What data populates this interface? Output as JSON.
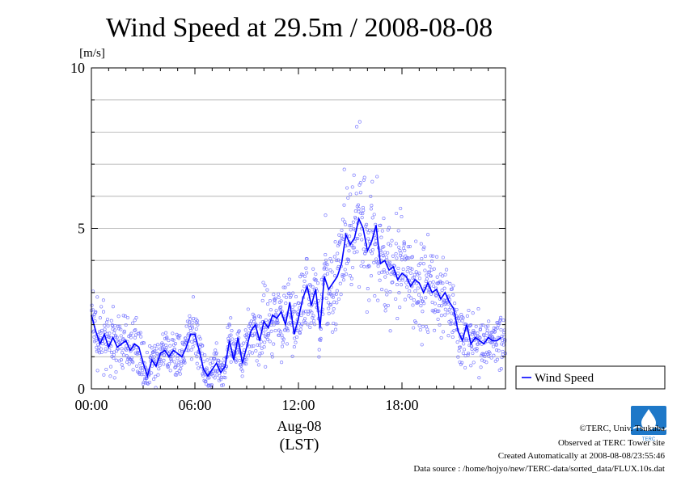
{
  "chart_data": {
    "type": "scatter",
    "title": "Wind Speed at 29.5m / 2008-08-08",
    "ylabel": "[m/s]",
    "xlabel_date": "Aug-08",
    "xlabel_tz": "(LST)",
    "ylim": [
      0,
      10
    ],
    "xlim_hours": [
      0,
      24
    ],
    "yticks": [
      0,
      5,
      10
    ],
    "xticks": [
      {
        "hour": 0,
        "label": "00:00"
      },
      {
        "hour": 6,
        "label": "06:00"
      },
      {
        "hour": 12,
        "label": "12:00"
      },
      {
        "hour": 18,
        "label": "18:00"
      }
    ],
    "grid": true,
    "legend_position": "right-bottom, outside plot",
    "series": [
      {
        "name": "Wind Speed",
        "kind": "line",
        "color": "#0000ff",
        "x_hours": [
          0,
          0.25,
          0.5,
          0.75,
          1,
          1.25,
          1.5,
          1.75,
          2,
          2.25,
          2.5,
          2.75,
          3,
          3.25,
          3.5,
          3.75,
          4,
          4.25,
          4.5,
          4.75,
          5,
          5.25,
          5.5,
          5.75,
          6,
          6.25,
          6.5,
          6.75,
          7,
          7.25,
          7.5,
          7.75,
          8,
          8.25,
          8.5,
          8.75,
          9,
          9.25,
          9.5,
          9.75,
          10,
          10.25,
          10.5,
          10.75,
          11,
          11.25,
          11.5,
          11.75,
          12,
          12.25,
          12.5,
          12.75,
          13,
          13.25,
          13.5,
          13.75,
          14,
          14.25,
          14.5,
          14.75,
          15,
          15.25,
          15.5,
          15.75,
          16,
          16.25,
          16.5,
          16.75,
          17,
          17.25,
          17.5,
          17.75,
          18,
          18.25,
          18.5,
          18.75,
          19,
          19.25,
          19.5,
          19.75,
          20,
          20.25,
          20.5,
          20.75,
          21,
          21.25,
          21.5,
          21.75,
          22,
          22.25,
          22.5,
          22.75,
          23,
          23.25,
          23.5,
          23.75
        ],
        "values": [
          2.3,
          1.8,
          1.4,
          1.7,
          1.3,
          1.6,
          1.3,
          1.4,
          1.5,
          1.2,
          1.4,
          1.3,
          0.8,
          0.4,
          0.9,
          0.7,
          1.1,
          1.2,
          1.0,
          1.2,
          1.1,
          1.0,
          1.3,
          1.7,
          1.7,
          1.2,
          0.6,
          0.4,
          0.6,
          0.8,
          0.5,
          0.7,
          1.5,
          0.9,
          1.6,
          0.8,
          1.3,
          1.8,
          2.0,
          1.5,
          2.1,
          1.9,
          2.3,
          2.2,
          2.4,
          2.0,
          2.7,
          1.7,
          2.2,
          2.8,
          3.2,
          2.6,
          3.1,
          1.9,
          3.5,
          3.1,
          3.3,
          3.5,
          3.9,
          4.8,
          4.5,
          4.7,
          5.3,
          5.0,
          4.3,
          4.6,
          5.1,
          3.9,
          4.0,
          3.7,
          3.8,
          3.4,
          3.6,
          3.5,
          3.2,
          3.4,
          3.3,
          3.0,
          3.3,
          3.0,
          3.1,
          2.8,
          3.0,
          2.7,
          2.5,
          1.8,
          1.5,
          2.0,
          1.4,
          1.6,
          1.5,
          1.4,
          1.6,
          1.5,
          1.5,
          1.6
        ]
      }
    ]
  },
  "footer": {
    "copyright": "©TERC, Univ. Tsukuba",
    "site": "Observed at TERC Tower site",
    "created": "Created Automatically at 2008-08-08/23:55:46",
    "source": "Data source : /home/hojyo/new/TERC-data/sorted_data/FLUX.10s.dat"
  },
  "logo": {
    "text": "TERC",
    "color": "#1e78c8"
  }
}
